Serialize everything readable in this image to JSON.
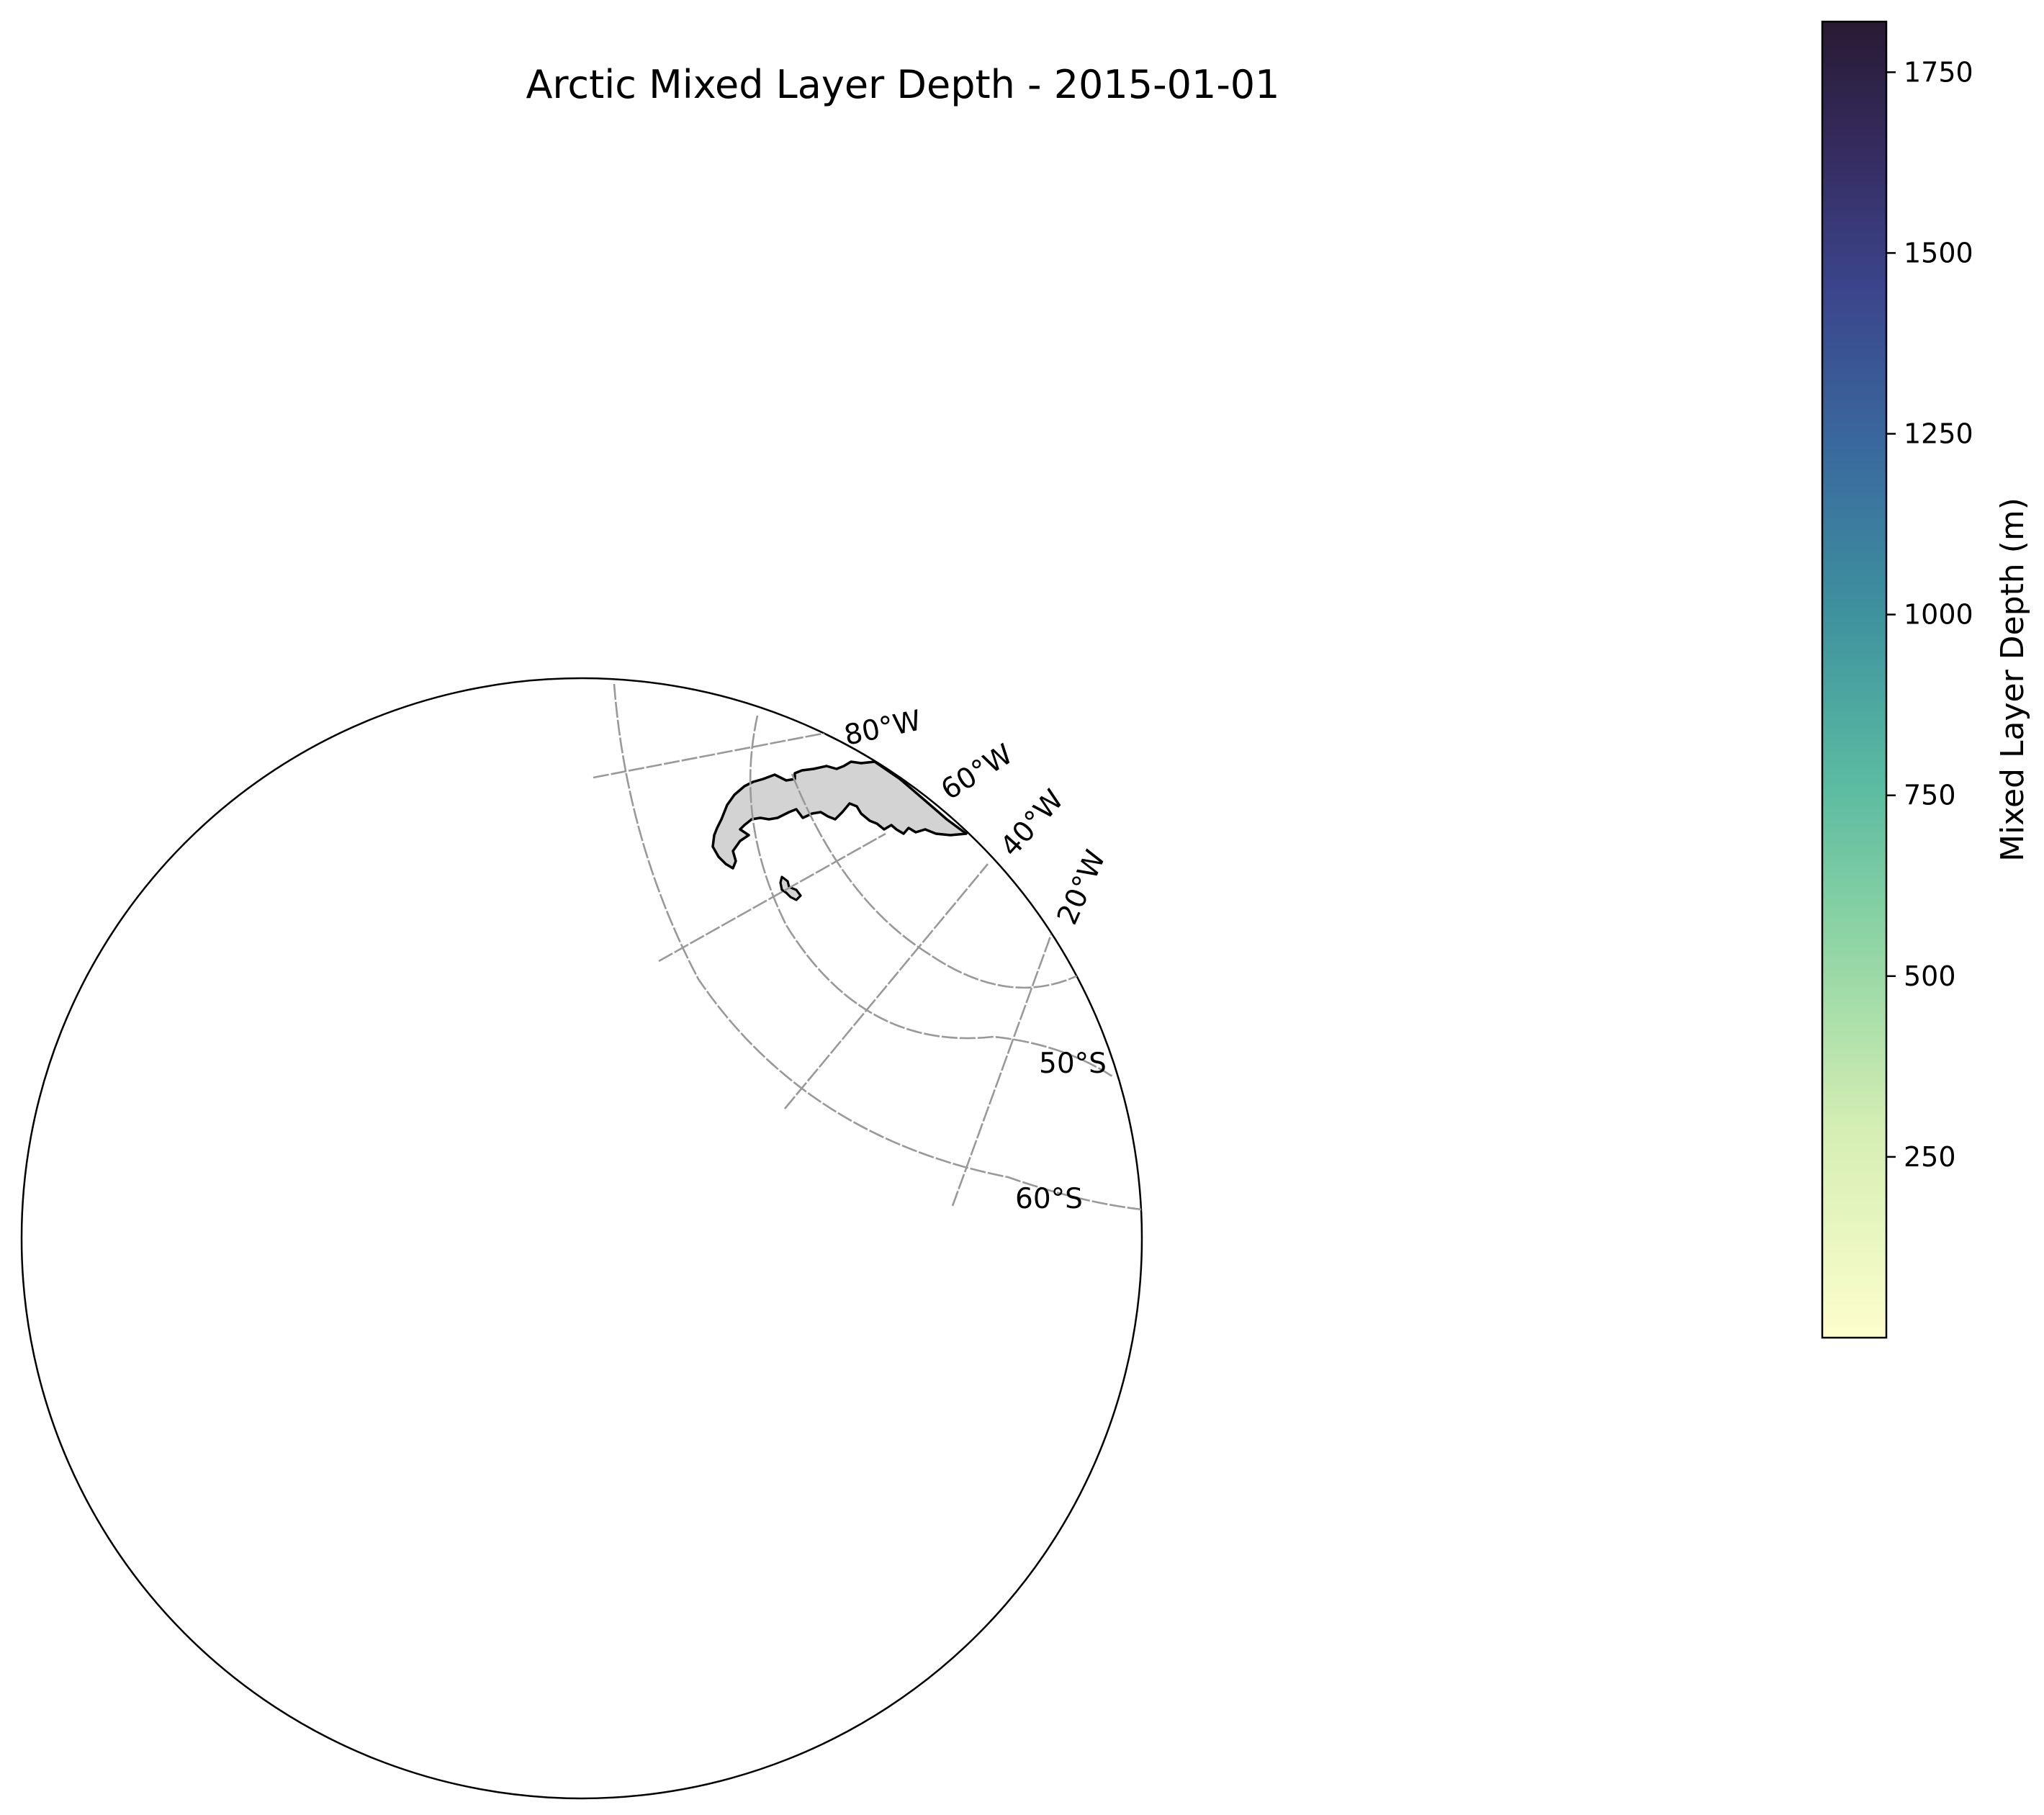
{
  "title": "Arctic Mixed Layer Depth - 2015-01-01",
  "map": {
    "projection": "polar stereographic",
    "land_color": "#d3d3d3",
    "coastline_color": "#000000",
    "gridline_color": "#999999",
    "meridian_labels": [
      "80°W",
      "60°W",
      "40°W",
      "20°W"
    ],
    "parallel_labels": [
      "50°S",
      "60°S"
    ]
  },
  "colorbar": {
    "label": "Mixed Layer Depth (m)",
    "colormap": "deep (yellow to dark purple)",
    "range": [
      0,
      1820
    ],
    "ticks": [
      250,
      500,
      750,
      1000,
      1250,
      1500,
      1750
    ],
    "tick_labels": [
      "250",
      "500",
      "750",
      "1000",
      "1250",
      "1500",
      "1750"
    ],
    "color_stops": [
      "#fdfecc",
      "#a5dea6",
      "#5bbba1",
      "#3d8c9e",
      "#39639e",
      "#3b3b7a",
      "#271b33"
    ]
  }
}
